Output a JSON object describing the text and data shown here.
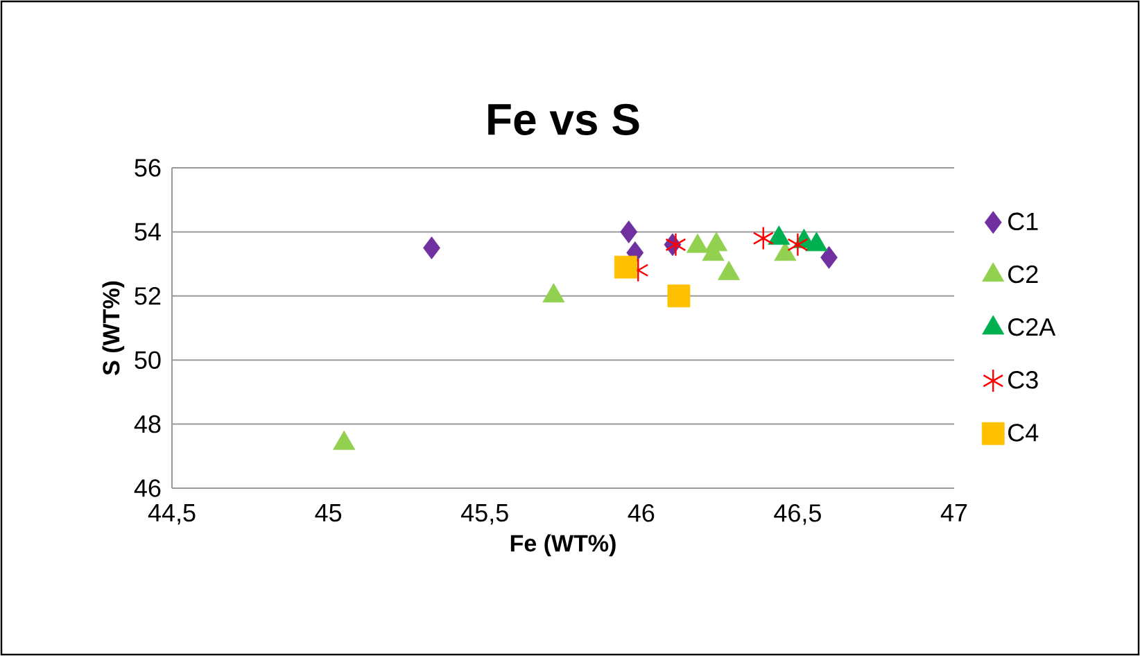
{
  "chart_data": {
    "type": "scatter",
    "title": "Fe vs S",
    "xlabel": "Fe (WT%)",
    "ylabel": "S  (WT%)",
    "xlim": [
      44.5,
      47
    ],
    "ylim": [
      46,
      56
    ],
    "xticks": [
      {
        "value": 44.5,
        "label": "44,5"
      },
      45,
      {
        "value": 45.5,
        "label": "45,5"
      },
      46,
      {
        "value": 46.5,
        "label": "46,5"
      },
      47
    ],
    "yticks": [
      46,
      48,
      50,
      52,
      54,
      56
    ],
    "grid": "y",
    "legend": "right",
    "series": [
      {
        "name": "C1",
        "color": "#7030a0",
        "marker": "diamond",
        "x": [
          45.33,
          45.96,
          45.98,
          46.1,
          46.6
        ],
        "values": [
          53.5,
          54.0,
          53.35,
          53.6,
          53.2
        ]
      },
      {
        "name": "C2",
        "color": "#92d050",
        "marker": "triangle",
        "x": [
          45.05,
          45.72,
          46.18,
          46.24,
          46.23,
          46.28,
          46.46
        ],
        "values": [
          47.4,
          52.0,
          53.55,
          53.6,
          53.3,
          52.7,
          53.3
        ]
      },
      {
        "name": "C2A",
        "color": "#00b050",
        "marker": "triangle",
        "x": [
          46.44,
          46.52,
          46.56
        ],
        "values": [
          53.8,
          53.7,
          53.6
        ]
      },
      {
        "name": "C3",
        "color": "#ff0000",
        "marker": "cross",
        "x": [
          45.99,
          46.11,
          46.39,
          46.5
        ],
        "values": [
          52.8,
          53.6,
          53.8,
          53.6
        ]
      },
      {
        "name": "C4",
        "color": "#ffc000",
        "marker": "square",
        "x": [
          45.95,
          46.12
        ],
        "values": [
          52.9,
          52.0
        ]
      }
    ]
  }
}
